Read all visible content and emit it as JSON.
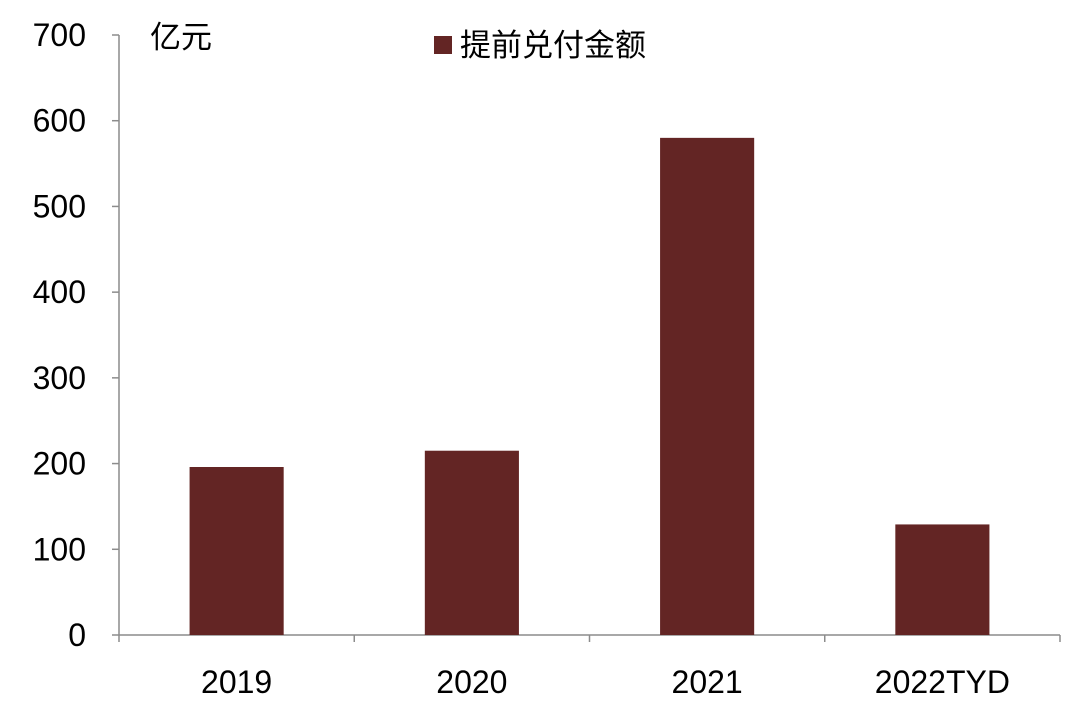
{
  "chart_data": {
    "type": "bar",
    "categories": [
      "2019",
      "2020",
      "2021",
      "2022TYD"
    ],
    "series": [
      {
        "name": "提前兑付金额",
        "values": [
          196,
          215,
          580,
          129
        ],
        "color": "#632524"
      }
    ],
    "unit_label": "亿元",
    "title": "",
    "xlabel": "",
    "ylabel": "",
    "ylim": [
      0,
      700
    ],
    "yticks": [
      0,
      100,
      200,
      300,
      400,
      500,
      600,
      700
    ],
    "grid": false,
    "legend_position": "top-center"
  }
}
